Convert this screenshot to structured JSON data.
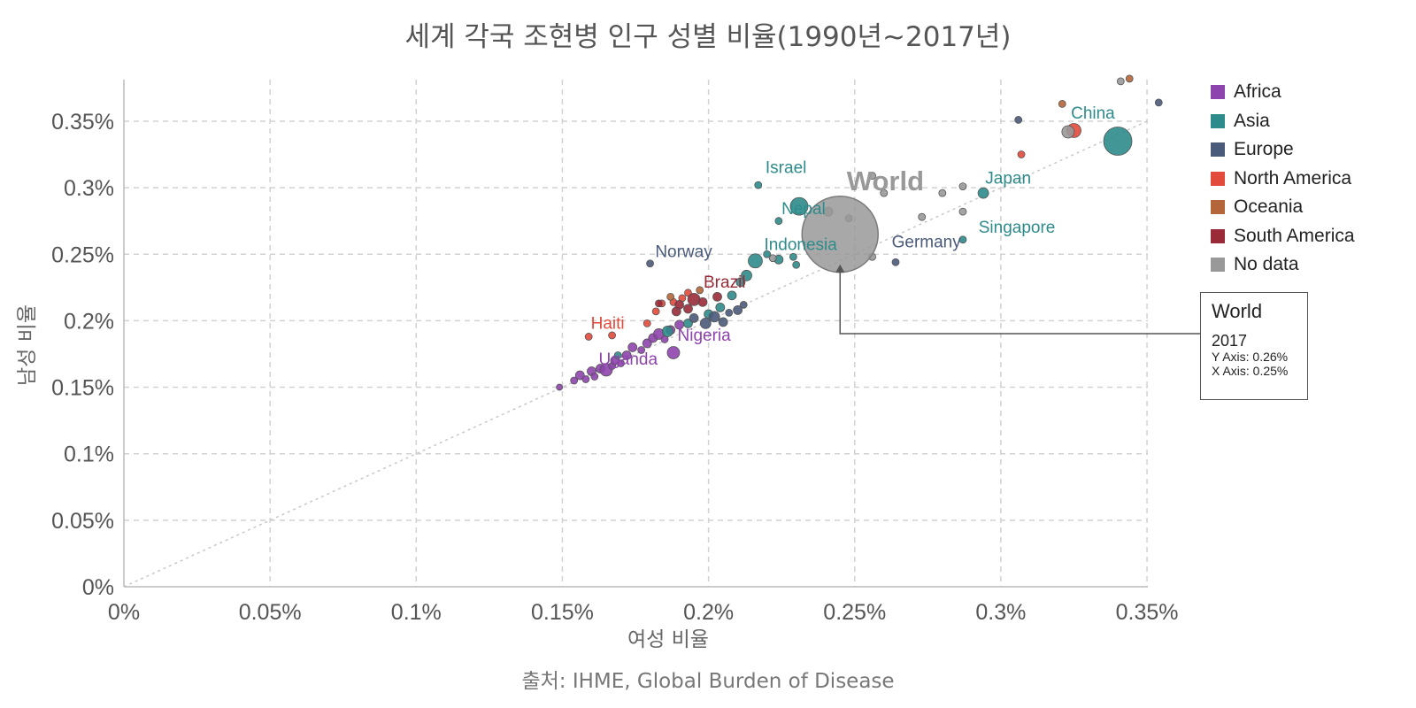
{
  "title": "세계 각국 조현병 인구 성별 비율(1990년~2017년)",
  "source": "출처: IHME, Global Burden of Disease",
  "chart_data": {
    "type": "scatter",
    "xlabel": "여성 비율",
    "ylabel": "남성 비율",
    "xlim": [
      0,
      0.35
    ],
    "ylim": [
      0,
      0.38
    ],
    "x_ticks": [
      {
        "v": 0,
        "label": "0%"
      },
      {
        "v": 0.05,
        "label": "0.05%"
      },
      {
        "v": 0.1,
        "label": "0.1%"
      },
      {
        "v": 0.15,
        "label": "0.15%"
      },
      {
        "v": 0.2,
        "label": "0.2%"
      },
      {
        "v": 0.25,
        "label": "0.25%"
      },
      {
        "v": 0.3,
        "label": "0.3%"
      },
      {
        "v": 0.35,
        "label": "0.35%"
      }
    ],
    "y_ticks": [
      {
        "v": 0,
        "label": "0%"
      },
      {
        "v": 0.05,
        "label": "0.05%"
      },
      {
        "v": 0.1,
        "label": "0.1%"
      },
      {
        "v": 0.15,
        "label": "0.15%"
      },
      {
        "v": 0.2,
        "label": "0.2%"
      },
      {
        "v": 0.25,
        "label": "0.25%"
      },
      {
        "v": 0.3,
        "label": "0.3%"
      },
      {
        "v": 0.35,
        "label": "0.35%"
      }
    ],
    "legend": [
      {
        "name": "Africa",
        "color": "#8e44ad"
      },
      {
        "name": "Asia",
        "color": "#2e8b8b"
      },
      {
        "name": "Europe",
        "color": "#4a5a7a"
      },
      {
        "name": "North America",
        "color": "#e24a3b"
      },
      {
        "name": "Oceania",
        "color": "#b5653a"
      },
      {
        "name": "South America",
        "color": "#9a2a38"
      },
      {
        "name": "No data",
        "color": "#999999"
      }
    ],
    "points": [
      {
        "x": 0.149,
        "y": 0.15,
        "r": 3.5,
        "region": "Africa"
      },
      {
        "x": 0.154,
        "y": 0.155,
        "r": 4,
        "region": "Africa"
      },
      {
        "x": 0.156,
        "y": 0.159,
        "r": 5,
        "region": "Africa"
      },
      {
        "x": 0.158,
        "y": 0.156,
        "r": 4,
        "region": "Africa"
      },
      {
        "x": 0.16,
        "y": 0.162,
        "r": 5,
        "region": "Africa"
      },
      {
        "x": 0.161,
        "y": 0.158,
        "r": 4,
        "region": "Africa"
      },
      {
        "x": 0.163,
        "y": 0.164,
        "r": 5,
        "region": "Africa"
      },
      {
        "x": 0.165,
        "y": 0.163,
        "r": 7,
        "region": "Africa"
      },
      {
        "x": 0.167,
        "y": 0.166,
        "r": 4,
        "region": "Africa"
      },
      {
        "x": 0.168,
        "y": 0.17,
        "r": 5,
        "region": "Africa"
      },
      {
        "x": 0.17,
        "y": 0.168,
        "r": 4,
        "region": "Africa"
      },
      {
        "x": 0.172,
        "y": 0.174,
        "r": 5,
        "region": "Africa"
      },
      {
        "x": 0.174,
        "y": 0.18,
        "r": 5,
        "region": "Africa"
      },
      {
        "x": 0.177,
        "y": 0.178,
        "r": 4,
        "region": "Africa"
      },
      {
        "x": 0.179,
        "y": 0.183,
        "r": 5,
        "region": "Africa"
      },
      {
        "x": 0.181,
        "y": 0.187,
        "r": 5,
        "region": "Africa"
      },
      {
        "x": 0.183,
        "y": 0.19,
        "r": 6,
        "region": "Africa"
      },
      {
        "x": 0.185,
        "y": 0.186,
        "r": 4,
        "region": "Africa"
      },
      {
        "x": 0.188,
        "y": 0.176,
        "r": 7,
        "region": "Africa"
      },
      {
        "x": 0.187,
        "y": 0.193,
        "r": 5,
        "region": "Africa"
      },
      {
        "x": 0.19,
        "y": 0.197,
        "r": 5,
        "region": "Africa"
      },
      {
        "x": 0.169,
        "y": 0.174,
        "r": 4,
        "region": "Asia"
      },
      {
        "x": 0.186,
        "y": 0.192,
        "r": 6,
        "region": "Asia"
      },
      {
        "x": 0.193,
        "y": 0.198,
        "r": 5,
        "region": "Asia"
      },
      {
        "x": 0.2,
        "y": 0.205,
        "r": 5,
        "region": "Asia"
      },
      {
        "x": 0.204,
        "y": 0.21,
        "r": 5,
        "region": "Asia"
      },
      {
        "x": 0.208,
        "y": 0.219,
        "r": 5,
        "region": "Asia"
      },
      {
        "x": 0.211,
        "y": 0.229,
        "r": 5,
        "region": "Asia"
      },
      {
        "x": 0.213,
        "y": 0.234,
        "r": 6,
        "region": "Asia"
      },
      {
        "x": 0.216,
        "y": 0.245,
        "r": 8,
        "region": "Asia"
      },
      {
        "x": 0.217,
        "y": 0.302,
        "r": 4,
        "region": "Asia"
      },
      {
        "x": 0.22,
        "y": 0.25,
        "r": 4,
        "region": "Asia"
      },
      {
        "x": 0.224,
        "y": 0.246,
        "r": 5,
        "region": "Asia"
      },
      {
        "x": 0.229,
        "y": 0.248,
        "r": 4,
        "region": "Asia"
      },
      {
        "x": 0.23,
        "y": 0.242,
        "r": 4,
        "region": "Asia"
      },
      {
        "x": 0.224,
        "y": 0.275,
        "r": 4,
        "region": "Asia"
      },
      {
        "x": 0.231,
        "y": 0.286,
        "r": 10,
        "region": "Asia"
      },
      {
        "x": 0.287,
        "y": 0.261,
        "r": 4,
        "region": "Asia"
      },
      {
        "x": 0.294,
        "y": 0.296,
        "r": 6,
        "region": "Asia"
      },
      {
        "x": 0.34,
        "y": 0.335,
        "r": 16,
        "region": "Asia"
      },
      {
        "x": 0.18,
        "y": 0.243,
        "r": 4,
        "region": "Europe"
      },
      {
        "x": 0.195,
        "y": 0.202,
        "r": 5,
        "region": "Europe"
      },
      {
        "x": 0.199,
        "y": 0.198,
        "r": 6,
        "region": "Europe"
      },
      {
        "x": 0.202,
        "y": 0.203,
        "r": 6,
        "region": "Europe"
      },
      {
        "x": 0.205,
        "y": 0.199,
        "r": 5,
        "region": "Europe"
      },
      {
        "x": 0.207,
        "y": 0.206,
        "r": 4,
        "region": "Europe"
      },
      {
        "x": 0.21,
        "y": 0.208,
        "r": 5,
        "region": "Europe"
      },
      {
        "x": 0.212,
        "y": 0.212,
        "r": 4,
        "region": "Europe"
      },
      {
        "x": 0.264,
        "y": 0.244,
        "r": 4,
        "region": "Europe"
      },
      {
        "x": 0.306,
        "y": 0.351,
        "r": 4,
        "region": "Europe"
      },
      {
        "x": 0.354,
        "y": 0.364,
        "r": 4,
        "region": "Europe"
      },
      {
        "x": 0.159,
        "y": 0.188,
        "r": 4,
        "region": "North America"
      },
      {
        "x": 0.167,
        "y": 0.189,
        "r": 4,
        "region": "North America"
      },
      {
        "x": 0.179,
        "y": 0.198,
        "r": 4,
        "region": "North America"
      },
      {
        "x": 0.182,
        "y": 0.207,
        "r": 4,
        "region": "North America"
      },
      {
        "x": 0.184,
        "y": 0.213,
        "r": 4,
        "region": "North America"
      },
      {
        "x": 0.188,
        "y": 0.214,
        "r": 4,
        "region": "North America"
      },
      {
        "x": 0.191,
        "y": 0.217,
        "r": 4,
        "region": "North America"
      },
      {
        "x": 0.193,
        "y": 0.221,
        "r": 4,
        "region": "North America"
      },
      {
        "x": 0.307,
        "y": 0.325,
        "r": 4,
        "region": "North America"
      },
      {
        "x": 0.325,
        "y": 0.343,
        "r": 8,
        "region": "North America"
      },
      {
        "x": 0.187,
        "y": 0.218,
        "r": 4,
        "region": "Oceania"
      },
      {
        "x": 0.197,
        "y": 0.223,
        "r": 4,
        "region": "Oceania"
      },
      {
        "x": 0.321,
        "y": 0.363,
        "r": 4,
        "region": "Oceania"
      },
      {
        "x": 0.344,
        "y": 0.382,
        "r": 4,
        "region": "Oceania"
      },
      {
        "x": 0.183,
        "y": 0.213,
        "r": 4,
        "region": "South America"
      },
      {
        "x": 0.189,
        "y": 0.207,
        "r": 5,
        "region": "South America"
      },
      {
        "x": 0.19,
        "y": 0.212,
        "r": 5,
        "region": "South America"
      },
      {
        "x": 0.193,
        "y": 0.209,
        "r": 5,
        "region": "South America"
      },
      {
        "x": 0.195,
        "y": 0.216,
        "r": 7,
        "region": "South America"
      },
      {
        "x": 0.198,
        "y": 0.214,
        "r": 5,
        "region": "South America"
      },
      {
        "x": 0.203,
        "y": 0.218,
        "r": 5,
        "region": "South America"
      },
      {
        "x": 0.222,
        "y": 0.247,
        "r": 4,
        "region": "No data"
      },
      {
        "x": 0.241,
        "y": 0.282,
        "r": 5,
        "region": "No data"
      },
      {
        "x": 0.248,
        "y": 0.277,
        "r": 4,
        "region": "No data"
      },
      {
        "x": 0.256,
        "y": 0.309,
        "r": 4,
        "region": "No data"
      },
      {
        "x": 0.256,
        "y": 0.248,
        "r": 4,
        "region": "No data"
      },
      {
        "x": 0.26,
        "y": 0.296,
        "r": 4,
        "region": "No data"
      },
      {
        "x": 0.273,
        "y": 0.278,
        "r": 4,
        "region": "No data"
      },
      {
        "x": 0.28,
        "y": 0.296,
        "r": 4,
        "region": "No data"
      },
      {
        "x": 0.287,
        "y": 0.301,
        "r": 4,
        "region": "No data"
      },
      {
        "x": 0.287,
        "y": 0.282,
        "r": 4,
        "region": "No data"
      },
      {
        "x": 0.323,
        "y": 0.342,
        "r": 7,
        "region": "No data"
      },
      {
        "x": 0.341,
        "y": 0.38,
        "r": 4,
        "region": "No data"
      },
      {
        "x": 0.245,
        "y": 0.265,
        "r": 43,
        "region": "No data",
        "world": true
      }
    ],
    "labels": [
      {
        "text": "China",
        "x": 0.3315,
        "y": 0.352,
        "region": "Asia"
      },
      {
        "text": "Israel",
        "x": 0.2265,
        "y": 0.311,
        "region": "Asia"
      },
      {
        "text": "Japan",
        "x": 0.3025,
        "y": 0.303,
        "region": "Asia"
      },
      {
        "text": "Nepal",
        "x": 0.2325,
        "y": 0.28,
        "region": "Asia"
      },
      {
        "text": "Singapore",
        "x": 0.3055,
        "y": 0.266,
        "region": "Asia"
      },
      {
        "text": "Indonesia",
        "x": 0.2315,
        "y": 0.253,
        "region": "Asia"
      },
      {
        "text": "Norway",
        "x": 0.1915,
        "y": 0.248,
        "region": "Europe"
      },
      {
        "text": "Germany",
        "x": 0.2745,
        "y": 0.255,
        "region": "Europe"
      },
      {
        "text": "Brazil",
        "x": 0.2055,
        "y": 0.225,
        "region": "South America"
      },
      {
        "text": "Haiti",
        "x": 0.1655,
        "y": 0.194,
        "region": "North America"
      },
      {
        "text": "Nigeria",
        "x": 0.1985,
        "y": 0.185,
        "region": "Africa"
      },
      {
        "text": "Uganda",
        "x": 0.1725,
        "y": 0.167,
        "region": "Africa"
      }
    ],
    "world_label": "World",
    "diagonal": [
      [
        0,
        0
      ],
      [
        0.35,
        0.35
      ]
    ]
  },
  "tooltip": {
    "title": "World",
    "year": "2017",
    "y_text": "Y Axis: 0.26%",
    "x_text": "X Axis: 0.25%"
  }
}
